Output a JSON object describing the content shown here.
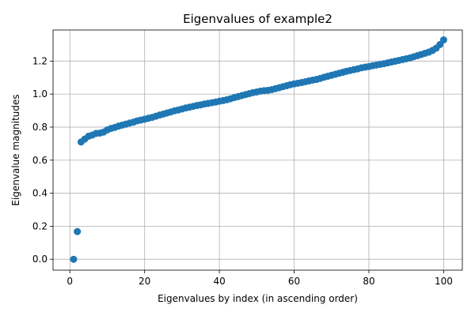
{
  "chart_data": {
    "type": "scatter",
    "title": "Eigenvalues of example2",
    "xlabel": "Eigenvalues by index (in ascending order)",
    "ylabel": "Eigenvalue magnitudes",
    "xlim": [
      -4.5,
      105.0
    ],
    "ylim": [
      -0.066,
      1.388
    ],
    "xticks": [
      0,
      20,
      40,
      60,
      80,
      100
    ],
    "yticks": [
      0.0,
      0.2,
      0.4,
      0.6,
      0.8,
      1.0,
      1.2
    ],
    "xtick_labels": [
      "0",
      "20",
      "40",
      "60",
      "80",
      "100"
    ],
    "ytick_labels": [
      "0.0",
      "0.2",
      "0.4",
      "0.6",
      "0.8",
      "1.0",
      "1.2"
    ],
    "grid": true,
    "marker_color": "#1f77b4",
    "x": [
      1,
      2,
      3,
      4,
      5,
      6,
      7,
      8,
      9,
      10,
      11,
      12,
      13,
      14,
      15,
      16,
      17,
      18,
      19,
      20,
      21,
      22,
      23,
      24,
      25,
      26,
      27,
      28,
      29,
      30,
      31,
      32,
      33,
      34,
      35,
      36,
      37,
      38,
      39,
      40,
      41,
      42,
      43,
      44,
      45,
      46,
      47,
      48,
      49,
      50,
      51,
      52,
      53,
      54,
      55,
      56,
      57,
      58,
      59,
      60,
      61,
      62,
      63,
      64,
      65,
      66,
      67,
      68,
      69,
      70,
      71,
      72,
      73,
      74,
      75,
      76,
      77,
      78,
      79,
      80,
      81,
      82,
      83,
      84,
      85,
      86,
      87,
      88,
      89,
      90,
      91,
      92,
      93,
      94,
      95,
      96,
      97,
      98,
      99,
      100
    ],
    "y": [
      0.0,
      0.168,
      0.71,
      0.728,
      0.745,
      0.752,
      0.762,
      0.764,
      0.77,
      0.783,
      0.792,
      0.798,
      0.806,
      0.812,
      0.818,
      0.825,
      0.83,
      0.838,
      0.843,
      0.848,
      0.854,
      0.859,
      0.866,
      0.873,
      0.879,
      0.886,
      0.892,
      0.899,
      0.904,
      0.91,
      0.916,
      0.921,
      0.926,
      0.931,
      0.935,
      0.94,
      0.944,
      0.948,
      0.952,
      0.957,
      0.961,
      0.966,
      0.972,
      0.979,
      0.985,
      0.991,
      0.997,
      1.003,
      1.009,
      1.013,
      1.018,
      1.021,
      1.023,
      1.027,
      1.033,
      1.039,
      1.045,
      1.051,
      1.057,
      1.062,
      1.066,
      1.07,
      1.075,
      1.08,
      1.085,
      1.089,
      1.095,
      1.102,
      1.108,
      1.114,
      1.12,
      1.126,
      1.132,
      1.138,
      1.143,
      1.148,
      1.153,
      1.159,
      1.163,
      1.167,
      1.172,
      1.176,
      1.18,
      1.184,
      1.189,
      1.194,
      1.199,
      1.204,
      1.209,
      1.214,
      1.219,
      1.226,
      1.233,
      1.24,
      1.247,
      1.254,
      1.264,
      1.278,
      1.3,
      1.328
    ]
  }
}
